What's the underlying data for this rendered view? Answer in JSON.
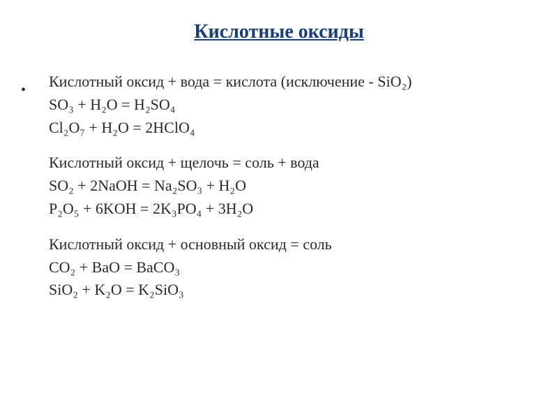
{
  "title": "Кислотные оксиды",
  "background_color": "#ffffff",
  "title_color": "#1a3d7a",
  "text_color": "#2a2a2a",
  "title_fontsize": 28,
  "body_fontsize": 22,
  "blocks": [
    {
      "rule": "Кислотный оксид + вода = кислота (исключение - SiO₂)",
      "reactions": [
        "SO₃ + H₂O = H₂SO₄",
        "Cl₂O₇ + H₂O = 2HClO₄"
      ]
    },
    {
      "rule": "Кислотный оксид + щелочь = соль + вода",
      "reactions": [
        "SO₂ + 2NaOH = Na₂SO₃ + H₂O",
        "P₂O₅ + 6KOH = 2K₃PO₄ + 3H₂O"
      ]
    },
    {
      "rule": "Кислотный оксид + основный оксид = соль",
      "reactions": [
        "CO₂ + BaO = BaCO₃",
        "SiO₂ + K₂O = K₂SiO₃"
      ]
    }
  ]
}
